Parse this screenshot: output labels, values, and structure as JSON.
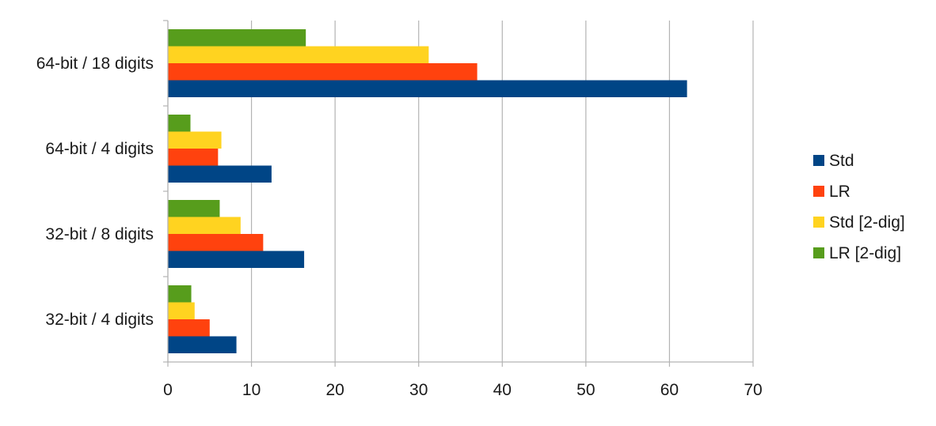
{
  "chart_data": {
    "type": "bar",
    "orientation": "horizontal",
    "categories": [
      "32-bit / 4 digits",
      "32-bit / 8 digits",
      "64-bit / 4 digits",
      "64-bit / 18 digits"
    ],
    "series": [
      {
        "name": "Std",
        "color": "#004586",
        "values": [
          8.2,
          16.3,
          12.4,
          62.1
        ]
      },
      {
        "name": "LR",
        "color": "#ff420e",
        "values": [
          5.0,
          11.4,
          6.0,
          37.0
        ]
      },
      {
        "name": "Std [2-dig]",
        "color": "#ffd320",
        "values": [
          3.2,
          8.7,
          6.4,
          31.2
        ]
      },
      {
        "name": "LR [2-dig]",
        "color": "#579d1c",
        "values": [
          2.8,
          6.2,
          2.7,
          16.5
        ]
      }
    ],
    "x_ticks": [
      0,
      10,
      20,
      30,
      40,
      50,
      60,
      70
    ],
    "xlim": [
      0,
      70
    ],
    "grid": true,
    "legend": "right",
    "title": "",
    "xlabel": "",
    "ylabel": ""
  }
}
